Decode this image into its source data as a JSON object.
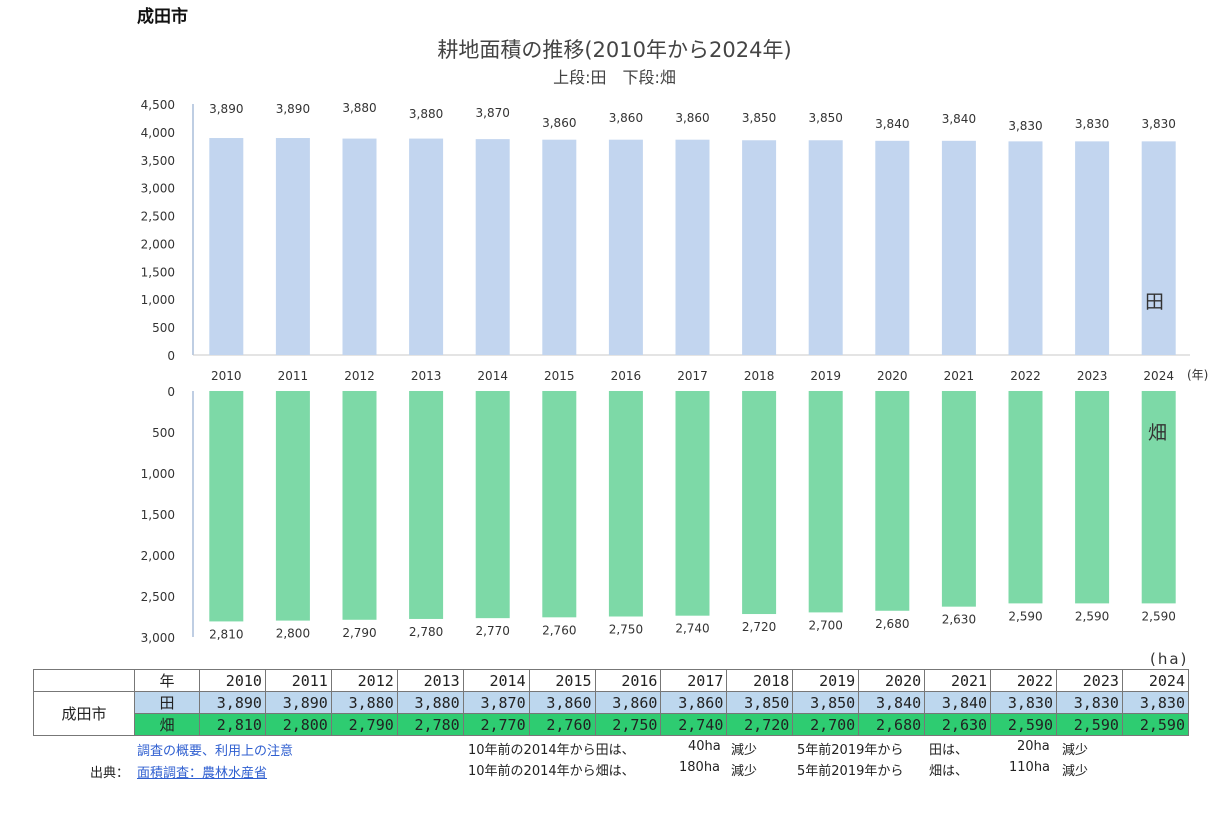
{
  "city": "成田市",
  "title": "耕地面積の推移(2010年から2024年)",
  "subtitle": "上段:田　下段:畑",
  "unit_ha": "(ha)",
  "colors": {
    "rice": "#c2d5ef",
    "field": "#7dd9a7",
    "rice_table": "#bdd7ee",
    "field_table": "#2ecc71"
  },
  "chart_data": [
    {
      "type": "bar",
      "series_label": "田",
      "categories": [
        "2010",
        "2011",
        "2012",
        "2013",
        "2014",
        "2015",
        "2016",
        "2017",
        "2018",
        "2019",
        "2020",
        "2021",
        "2022",
        "2023",
        "2024"
      ],
      "values": [
        3890,
        3890,
        3880,
        3880,
        3870,
        3860,
        3860,
        3860,
        3850,
        3850,
        3840,
        3840,
        3830,
        3830,
        3830
      ],
      "value_labels": [
        "3,890",
        "3,890",
        "3,880",
        "3,880",
        "3,870",
        "3,860",
        "3,860",
        "3,860",
        "3,850",
        "3,850",
        "3,840",
        "3,840",
        "3,830",
        "3,830",
        "3,830"
      ],
      "ylim": [
        0,
        4500
      ],
      "yticks": [
        "0",
        "500",
        "1,000",
        "1,500",
        "2,000",
        "2,500",
        "3,000",
        "3,500",
        "4,000",
        "4,500"
      ],
      "xunit": "(年)"
    },
    {
      "type": "bar",
      "series_label": "畑",
      "direction": "downward",
      "categories": [
        "2010",
        "2011",
        "2012",
        "2013",
        "2014",
        "2015",
        "2016",
        "2017",
        "2018",
        "2019",
        "2020",
        "2021",
        "2022",
        "2023",
        "2024"
      ],
      "values": [
        2810,
        2800,
        2790,
        2780,
        2770,
        2760,
        2750,
        2740,
        2720,
        2700,
        2680,
        2630,
        2590,
        2590,
        2590
      ],
      "value_labels": [
        "2,810",
        "2,800",
        "2,790",
        "2,780",
        "2,770",
        "2,760",
        "2,750",
        "2,740",
        "2,720",
        "2,700",
        "2,680",
        "2,630",
        "2,590",
        "2,590",
        "2,590"
      ],
      "ylim": [
        0,
        3000
      ],
      "yticks": [
        "0",
        "500",
        "1,000",
        "1,500",
        "2,000",
        "2,500",
        "3,000"
      ]
    }
  ],
  "table": {
    "year_header": "年",
    "city": "成田市",
    "rice_label": "田",
    "field_label": "畑",
    "years": [
      "2010",
      "2011",
      "2012",
      "2013",
      "2014",
      "2015",
      "2016",
      "2017",
      "2018",
      "2019",
      "2020",
      "2021",
      "2022",
      "2023",
      "2024"
    ],
    "rice": [
      "3,890",
      "3,890",
      "3,880",
      "3,880",
      "3,870",
      "3,860",
      "3,860",
      "3,860",
      "3,850",
      "3,850",
      "3,840",
      "3,840",
      "3,830",
      "3,830",
      "3,830"
    ],
    "field": [
      "2,810",
      "2,800",
      "2,790",
      "2,780",
      "2,770",
      "2,760",
      "2,750",
      "2,740",
      "2,720",
      "2,700",
      "2,680",
      "2,630",
      "2,590",
      "2,590",
      "2,590"
    ]
  },
  "notes": {
    "survey_link": "調査の概要、利用上の注意",
    "source_prefix": "出典：",
    "source_link": "面積調査：農林水産省",
    "rice10_a": "10年前の2014年から田は、",
    "rice10_b": "40ha",
    "rice10_c": "減少",
    "field10_a": "10年前の2014年から畑は、",
    "field10_b": "180ha",
    "field10_c": "減少",
    "rice5_a": "5年前2019年から",
    "rice5_b": "田は、",
    "rice5_c": "20ha",
    "rice5_d": "減少",
    "field5_a": "5年前2019年から",
    "field5_b": "畑は、",
    "field5_c": "110ha",
    "field5_d": "減少"
  }
}
